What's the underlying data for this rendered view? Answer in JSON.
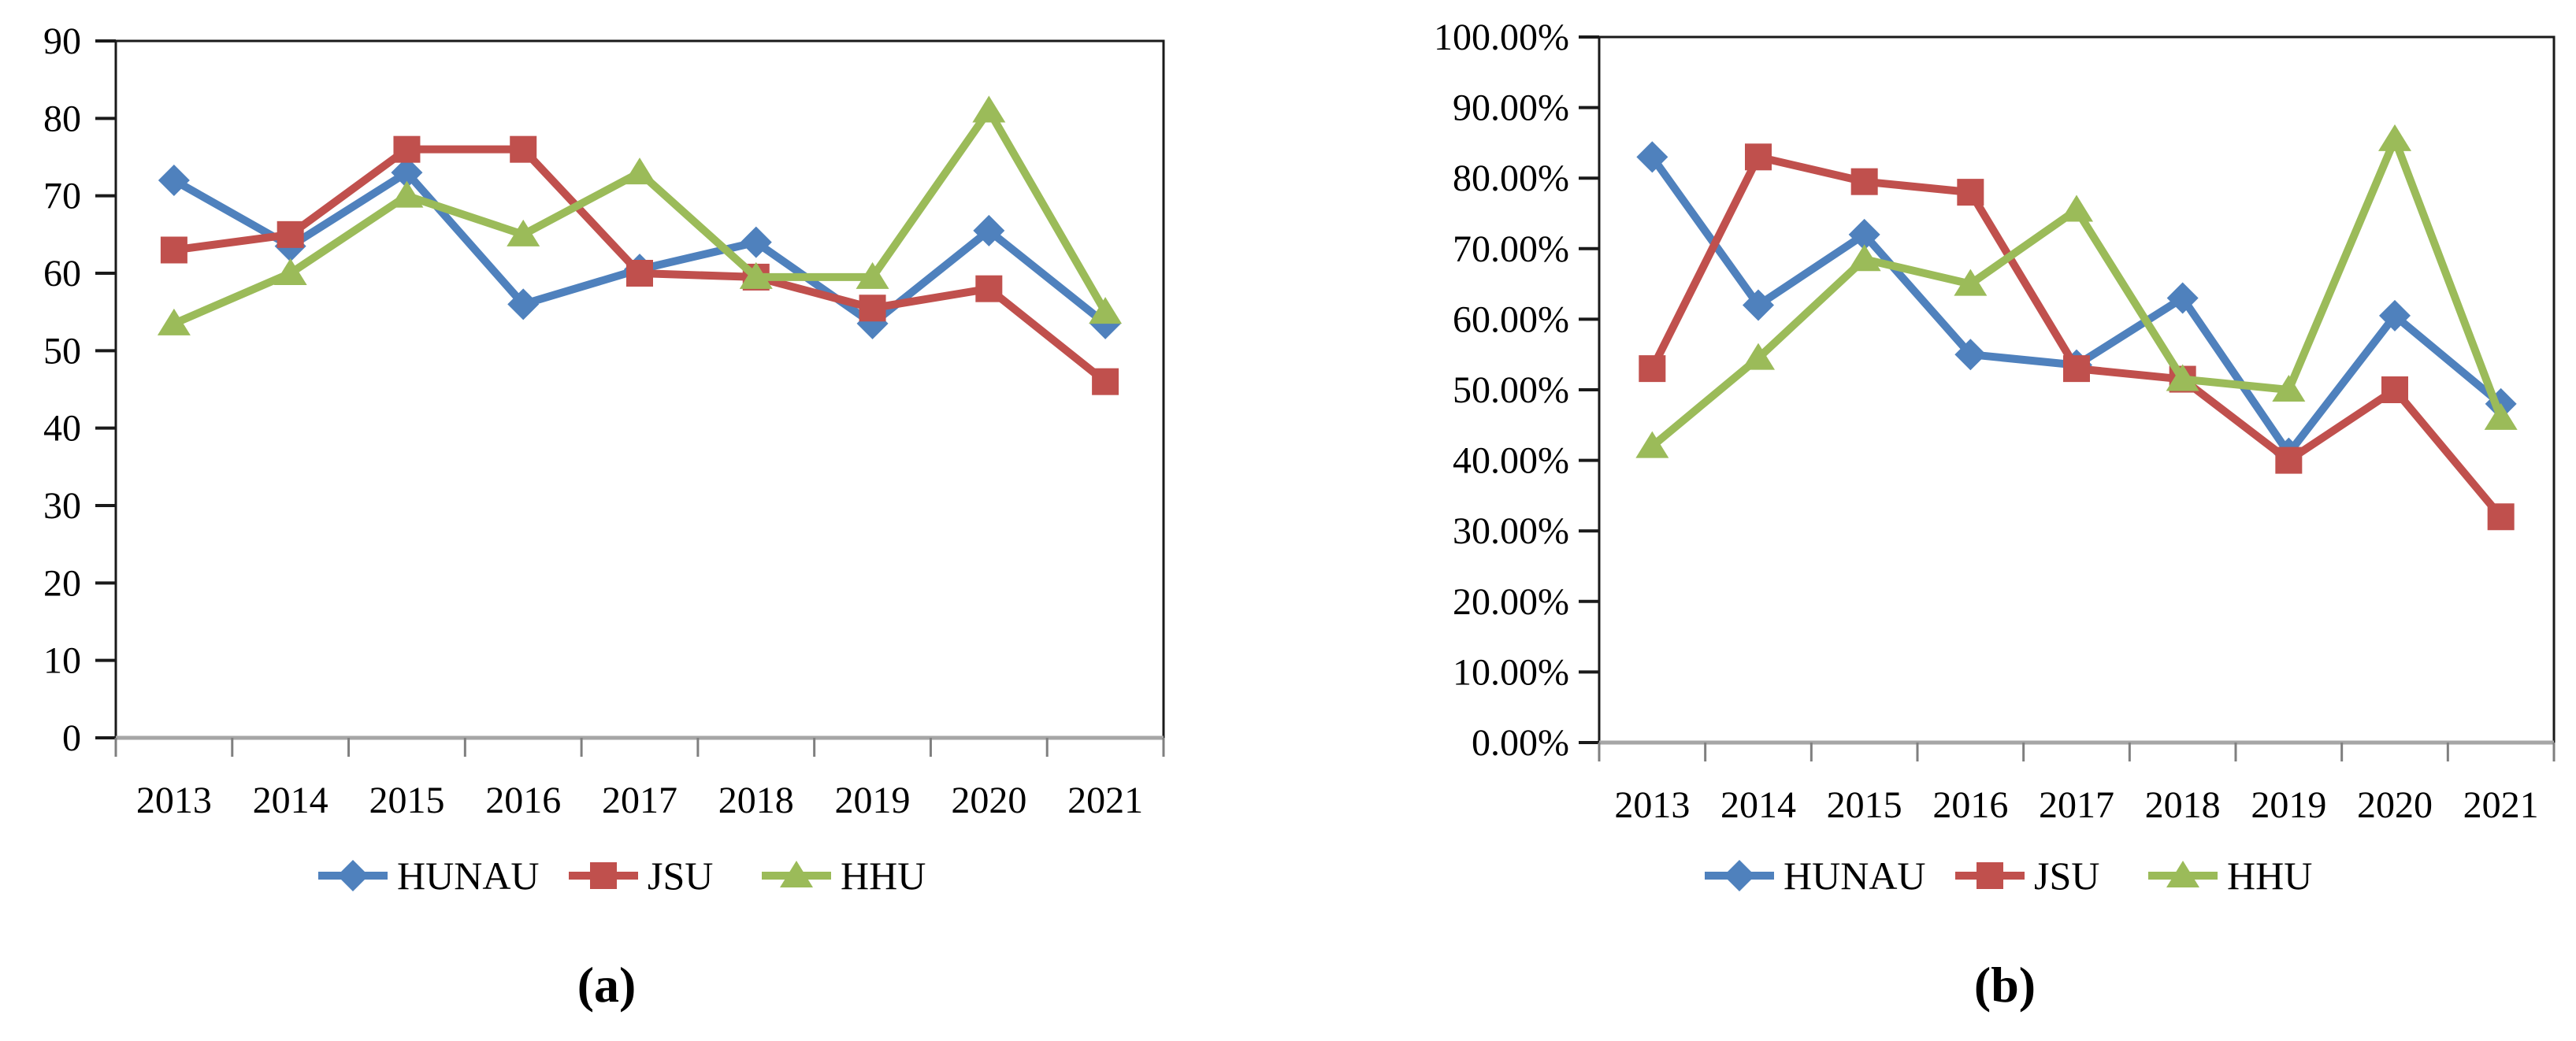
{
  "chart_data": [
    {
      "type": "line",
      "caption": "(a)",
      "title": "",
      "xlabel": "",
      "ylabel": "",
      "grid": false,
      "legend_position": "bottom",
      "categories": [
        "2013",
        "2014",
        "2015",
        "2016",
        "2017",
        "2018",
        "2019",
        "2020",
        "2021"
      ],
      "y_axis": {
        "min": 0,
        "max": 90,
        "step": 10,
        "tick_labels": [
          "0",
          "10",
          "20",
          "30",
          "40",
          "50",
          "60",
          "70",
          "80",
          "90"
        ]
      },
      "series": [
        {
          "name": "HUNAU",
          "color": "#4F81BD",
          "marker": "diamond",
          "values": [
            72,
            63.5,
            73,
            56,
            60.5,
            64,
            53.5,
            65.5,
            53.5
          ]
        },
        {
          "name": "JSU",
          "color": "#C0504D",
          "marker": "square",
          "values": [
            63,
            65,
            76,
            76,
            60,
            59.5,
            55.5,
            58,
            46
          ]
        },
        {
          "name": "HHU",
          "color": "#9BBB59",
          "marker": "triangle",
          "values": [
            53.5,
            60,
            70,
            65,
            73,
            59.5,
            59.5,
            81,
            55
          ]
        }
      ]
    },
    {
      "type": "line",
      "caption": "(b)",
      "title": "",
      "xlabel": "",
      "ylabel": "",
      "grid": false,
      "legend_position": "bottom",
      "categories": [
        "2013",
        "2014",
        "2015",
        "2016",
        "2017",
        "2018",
        "2019",
        "2020",
        "2021"
      ],
      "y_axis": {
        "min": 0,
        "max": 100,
        "step": 10,
        "tick_labels": [
          "0.00%",
          "10.00%",
          "20.00%",
          "30.00%",
          "40.00%",
          "50.00%",
          "60.00%",
          "70.00%",
          "80.00%",
          "90.00%",
          "100.00%"
        ]
      },
      "series": [
        {
          "name": "HUNAU",
          "color": "#4F81BD",
          "marker": "diamond",
          "values": [
            83,
            62,
            72,
            55,
            53.5,
            63,
            41,
            60.5,
            48
          ]
        },
        {
          "name": "JSU",
          "color": "#C0504D",
          "marker": "square",
          "values": [
            53,
            83,
            79.5,
            78,
            53,
            51.5,
            40,
            50,
            32
          ]
        },
        {
          "name": "HHU",
          "color": "#9BBB59",
          "marker": "triangle",
          "values": [
            42,
            54.5,
            68.5,
            65,
            75.5,
            51.5,
            50,
            85.5,
            46
          ]
        }
      ]
    }
  ]
}
